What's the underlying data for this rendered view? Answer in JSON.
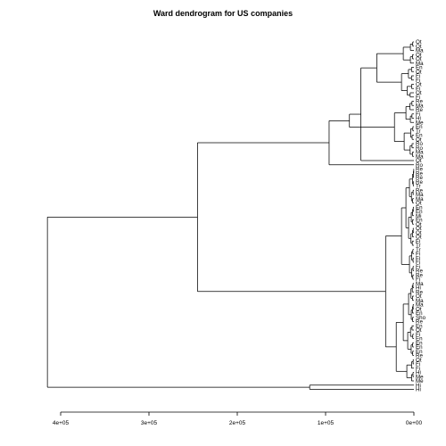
{
  "title": "Ward dendrogram for US companies",
  "chart_data": {
    "type": "dendrogram",
    "title": "Ward dendrogram for US companies",
    "orientation": "horizontal, leaves on the right",
    "x_axis": {
      "tick_labels": [
        "4e+05",
        "3e+05",
        "2e+05",
        "1e+05",
        "0e+00"
      ],
      "tick_values": [
        400000,
        300000,
        200000,
        100000,
        0
      ],
      "range": [
        400000,
        0
      ]
    },
    "leaf_labels": [
      "Ot",
      "Ot",
      "Ma",
      "Ot",
      "Ot",
      "Ma",
      "En",
      "Ot",
      "Fi",
      "Fi",
      "Ot",
      "Fi",
      "Ot",
      "Fi",
      "Re",
      "Ma",
      "Re",
      "Fi",
      "Hi",
      "Me",
      "En",
      "Tr",
      "En",
      "Ot",
      "Ro",
      "Ro",
      "Ma",
      "Ma",
      "Ot",
      "Ro",
      "Re",
      "Re",
      "Re",
      "Re",
      "Tr",
      "Re",
      "Ma",
      "Ma",
      "Ot",
      "En",
      "En",
      "Mi",
      "En",
      "Ot",
      "Ot",
      "Ot",
      "Ot",
      "Fi",
      "Tr",
      "Tr",
      "Fi",
      "Fi",
      "Fi",
      "Fi",
      "Re",
      "Re",
      "Fi",
      "Ma",
      "Hi",
      "Re",
      "Ot",
      "Ma",
      "Ma",
      "Ot",
      "En",
      "Sho",
      "Re",
      "En",
      "Ot",
      "Fi",
      "En",
      "En",
      "En",
      "En",
      "Re",
      "Ot",
      "Fi",
      "Fi",
      "Hi",
      "Me",
      "Me",
      "Hi",
      "Hi"
    ],
    "merge_heights": {
      "root": 415000,
      "main_cluster": 245000,
      "upper_group": 96000,
      "upper_sub_a": 73000,
      "upper_sub_b": 22000,
      "lower_group": 32000,
      "outlier_pair": 118000
    }
  }
}
